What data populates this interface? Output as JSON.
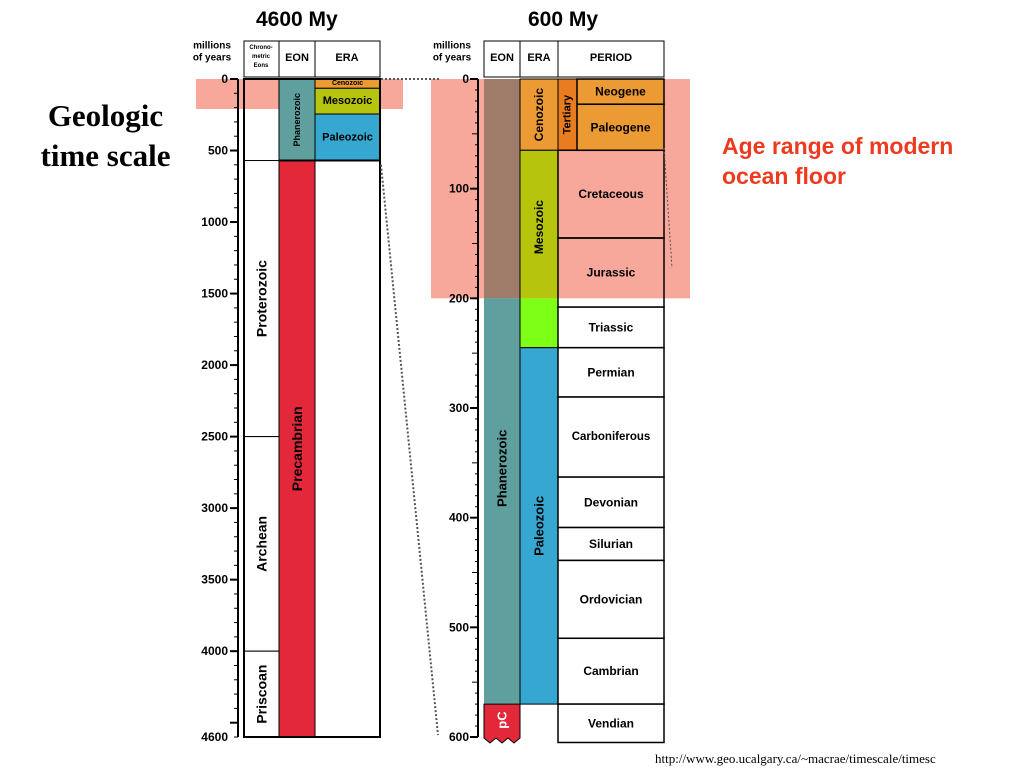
{
  "slide": {
    "title_line1": "Geologic",
    "title_line2": "time scale",
    "left_title": "4600 My",
    "right_title": "600 My",
    "highlight_note_line1": "Age range of modern",
    "highlight_note_line2": "ocean floor",
    "source_url": "http://www.geo.ucalgary.ca/~macrae/timescale/timesc"
  },
  "colors": {
    "highlight": "#f8a79b",
    "precambrian": "#e3283a",
    "phanerozoic": "#5fa09f",
    "phanerozoic_top": "#9f7c6a",
    "paleozoic": "#35a7d0",
    "mesozoic": "#b6c40d",
    "mesozoic_lower": "#7eff16",
    "cenozoic": "#ec9a34",
    "tertiary": "#e97c1e",
    "note_text": "#ee3a1f"
  },
  "left_scale": {
    "header_years": "millions of years",
    "header_chrono": "Chrono-metric Eons",
    "header_eon": "EON",
    "header_era": "ERA",
    "tick_labels": [
      "0",
      "500",
      "1000",
      "1500",
      "2000",
      "2500",
      "3000",
      "3500",
      "4000",
      "4600"
    ],
    "chrono_eons": [
      {
        "name": "Proterozoic",
        "start": 570,
        "end": 2500
      },
      {
        "name": "Archean",
        "start": 2500,
        "end": 4000
      },
      {
        "name": "Priscoan",
        "start": 4000,
        "end": 4600
      }
    ],
    "eons": [
      {
        "name": "Phanerozoic",
        "start": 0,
        "end": 570,
        "color": "#5fa09f"
      },
      {
        "name": "Precambrian",
        "start": 570,
        "end": 4600,
        "color": "#e3283a"
      }
    ],
    "eras": [
      {
        "name": "Cenozoic",
        "start": 0,
        "end": 65,
        "color": "#ec9a34"
      },
      {
        "name": "Mesozoic",
        "start": 65,
        "end": 245,
        "color": "#b6c40d"
      },
      {
        "name": "Paleozoic",
        "start": 245,
        "end": 570,
        "color": "#35a7d0"
      }
    ]
  },
  "right_scale": {
    "header_years": "millions of years",
    "header_eon": "EON",
    "header_era": "ERA",
    "header_period": "PERIOD",
    "tick_labels": [
      "0",
      "100",
      "200",
      "300",
      "400",
      "500",
      "600"
    ],
    "eons": [
      {
        "name": "Phanerozoic",
        "start": 0,
        "end": 570
      },
      {
        "name": "pC",
        "start": 570,
        "end": 600
      }
    ],
    "eras": [
      {
        "name": "Cenozoic",
        "start": 0,
        "end": 65
      },
      {
        "name": "Mesozoic",
        "start": 65,
        "end": 245
      },
      {
        "name": "Paleozoic",
        "start": 245,
        "end": 570
      }
    ],
    "subera": {
      "name": "Tertiary",
      "start": 0,
      "end": 65
    },
    "periods": [
      {
        "name": "Neogene",
        "start": 0,
        "end": 23
      },
      {
        "name": "Paleogene",
        "start": 23,
        "end": 65
      },
      {
        "name": "Cretaceous",
        "start": 65,
        "end": 145
      },
      {
        "name": "Jurassic",
        "start": 145,
        "end": 208
      },
      {
        "name": "Triassic",
        "start": 208,
        "end": 245
      },
      {
        "name": "Permian",
        "start": 245,
        "end": 290
      },
      {
        "name": "Carboniferous",
        "start": 290,
        "end": 363
      },
      {
        "name": "Devonian",
        "start": 363,
        "end": 409
      },
      {
        "name": "Silurian",
        "start": 409,
        "end": 439
      },
      {
        "name": "Ordovician",
        "start": 439,
        "end": 510
      },
      {
        "name": "Cambrian",
        "start": 510,
        "end": 570
      },
      {
        "name": "Vendian",
        "start": 570,
        "end": 610
      }
    ]
  }
}
